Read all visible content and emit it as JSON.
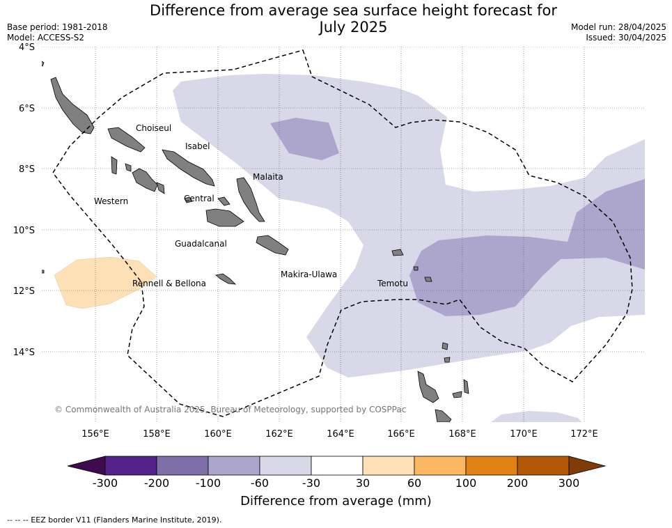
{
  "header": {
    "title_line1": "Difference from average sea surface height forecast for",
    "title_line2": "July 2025",
    "base_period": "Base period: 1981-2018",
    "model": "Model: ACCESS-S2",
    "model_run": "Model run: 28/04/2025",
    "issued": "Issued: 30/04/2025"
  },
  "map": {
    "lat_labels": [
      "4°S",
      "6°S",
      "8°S",
      "10°S",
      "12°S",
      "14°S"
    ],
    "lon_labels": [
      "156°E",
      "158°E",
      "160°E",
      "162°E",
      "164°E",
      "166°E",
      "168°E",
      "170°E",
      "172°E"
    ],
    "provinces": [
      "Choiseul",
      "Isabel",
      "Malaita",
      "Western",
      "Central",
      "Guadalcanal",
      "Makira-Ulawa",
      "Rennell & Bellona",
      "Temotu"
    ],
    "copyright": "© Commonwealth of Australia 2025, Bureau of Meteorology, supported by COSPPac",
    "land_color": "#808080",
    "border_style": "dashed"
  },
  "colorbar": {
    "label": "Difference from average (mm)",
    "ticks": [
      "-300",
      "-200",
      "-100",
      "-60",
      "-30",
      "30",
      "60",
      "100",
      "200",
      "300"
    ],
    "colors": [
      "#3f0b4e",
      "#54208a",
      "#7e6fa8",
      "#aca5cc",
      "#d8d8e9",
      "#ffffff",
      "#fee0b6",
      "#fbb863",
      "#e08214",
      "#b35806",
      "#7f3b08"
    ]
  },
  "footer": {
    "legend_text": "--  --  -- EEZ border V11 (Flanders Marine Institute, 2019)."
  }
}
